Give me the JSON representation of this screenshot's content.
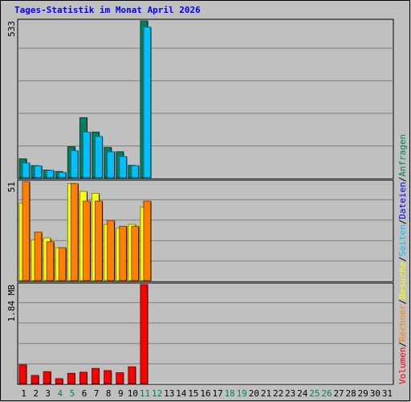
{
  "chart_data": {
    "type": "bar",
    "title": "Tages-Statistik im Monat April 2026",
    "categories": [
      "1",
      "2",
      "3",
      "4",
      "5",
      "6",
      "7",
      "8",
      "9",
      "10",
      "11",
      "12",
      "13",
      "14",
      "15",
      "16",
      "17",
      "18",
      "19",
      "20",
      "21",
      "22",
      "23",
      "24",
      "25",
      "26",
      "27",
      "28",
      "29",
      "30",
      "31"
    ],
    "weekend_days": [
      "4",
      "5",
      "11",
      "12",
      "18",
      "19",
      "25",
      "26"
    ],
    "panels": [
      {
        "max_label": "533",
        "ylim": [
          0,
          533
        ],
        "series": [
          {
            "name": "Anfragen",
            "color": "#008060",
            "values": [
              64,
              41,
              26,
              21,
              105,
              204,
              155,
              103,
              88,
              42,
              533,
              0,
              0,
              0,
              0,
              0,
              0,
              0,
              0,
              0,
              0,
              0,
              0,
              0,
              0,
              0,
              0,
              0,
              0,
              0,
              0
            ]
          },
          {
            "name": "Dateien",
            "color": "#0000ff",
            "values": [
              null,
              null,
              null,
              null,
              null,
              null,
              null,
              null,
              null,
              null,
              null,
              null,
              null,
              null,
              null,
              null,
              null,
              null,
              null,
              null,
              null,
              null,
              null,
              null,
              null,
              null,
              null,
              null,
              null,
              null,
              null
            ]
          },
          {
            "name": "Seiten",
            "color": "#00c0ff",
            "values": [
              50,
              40,
              25,
              18,
              92,
              155,
              140,
              88,
              72,
              41,
              512,
              0,
              0,
              0,
              0,
              0,
              0,
              0,
              0,
              0,
              0,
              0,
              0,
              0,
              0,
              0,
              0,
              0,
              0,
              0,
              0
            ]
          }
        ]
      },
      {
        "max_label": "51",
        "ylim": [
          0,
          51
        ],
        "series": [
          {
            "name": "Besuche",
            "color": "#ffff00",
            "values": [
              40,
              21,
              22,
              17,
              50,
              46,
              45,
              29,
              27,
              29,
              38,
              0,
              0,
              0,
              0,
              0,
              0,
              0,
              0,
              0,
              0,
              0,
              0,
              0,
              0,
              0,
              0,
              0,
              0,
              0,
              0
            ]
          },
          {
            "name": "Rechner",
            "color": "#ff8000",
            "values": [
              51,
              25,
              20,
              17,
              50,
              41,
              41,
              31,
              28,
              28,
              41,
              0,
              0,
              0,
              0,
              0,
              0,
              0,
              0,
              0,
              0,
              0,
              0,
              0,
              0,
              0,
              0,
              0,
              0,
              0,
              0
            ]
          }
        ]
      },
      {
        "max_label": "1.84 MB",
        "ylim": [
          0,
          1.84
        ],
        "series": [
          {
            "name": "Volumen",
            "color": "#ff0000",
            "values": [
              0.35,
              0.15,
              0.22,
              0.09,
              0.19,
              0.21,
              0.28,
              0.24,
              0.2,
              0.31,
              1.84,
              0,
              0,
              0,
              0,
              0,
              0,
              0,
              0,
              0,
              0,
              0,
              0,
              0,
              0,
              0,
              0,
              0,
              0,
              0,
              0
            ]
          }
        ]
      }
    ],
    "legend_position": "right",
    "legend_separator": "/",
    "grid": true
  }
}
